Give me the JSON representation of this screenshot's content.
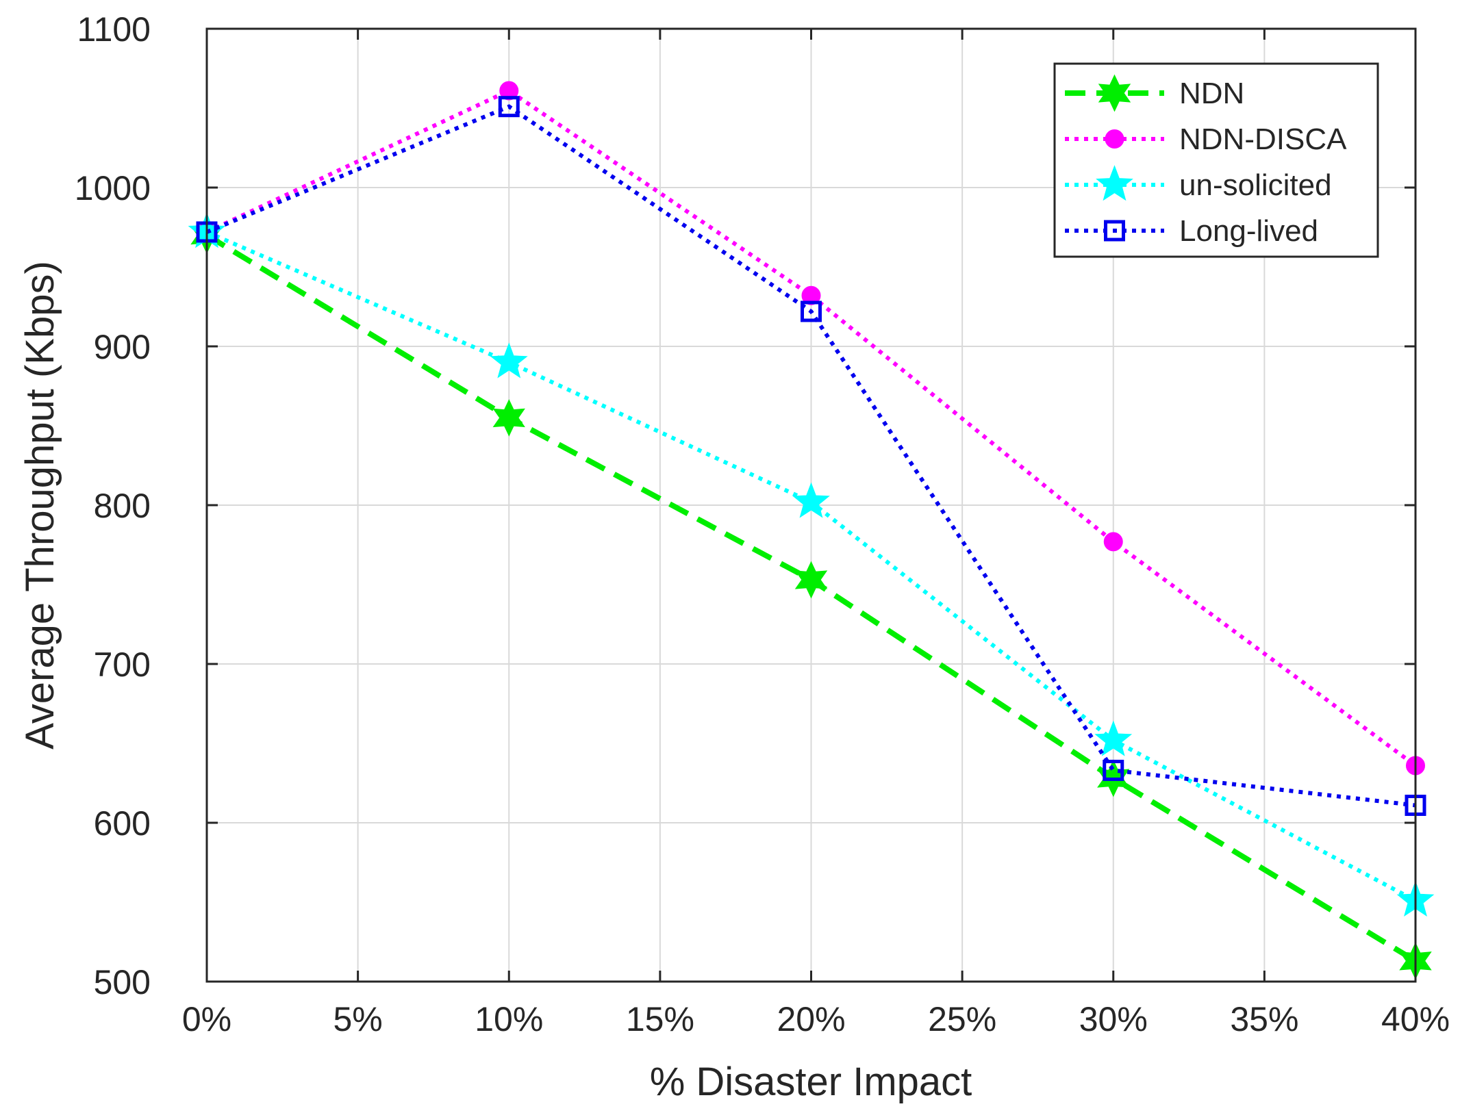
{
  "chart_data": {
    "type": "line",
    "title": "",
    "xlabel": "% Disaster Impact",
    "ylabel": "Average Throughput (Kbps)",
    "xlim": [
      0,
      40
    ],
    "ylim": [
      500,
      1100
    ],
    "grid": true,
    "legend_position": "top-right",
    "x_ticks": [
      {
        "value": 0,
        "label": "0%"
      },
      {
        "value": 5,
        "label": "5%"
      },
      {
        "value": 10,
        "label": "10%"
      },
      {
        "value": 15,
        "label": "15%"
      },
      {
        "value": 20,
        "label": "20%"
      },
      {
        "value": 25,
        "label": "25%"
      },
      {
        "value": 30,
        "label": "30%"
      },
      {
        "value": 35,
        "label": "35%"
      },
      {
        "value": 40,
        "label": "40%"
      }
    ],
    "y_ticks": [
      {
        "value": 500,
        "label": "500"
      },
      {
        "value": 600,
        "label": "600"
      },
      {
        "value": 700,
        "label": "700"
      },
      {
        "value": 800,
        "label": "800"
      },
      {
        "value": 900,
        "label": "900"
      },
      {
        "value": 1000,
        "label": "1000"
      },
      {
        "value": 1100,
        "label": "1100"
      }
    ],
    "x": [
      0,
      10,
      20,
      30,
      40
    ],
    "series": [
      {
        "name": "NDN",
        "values": [
          970,
          855,
          753,
          628,
          513
        ],
        "color": "#00ee00",
        "line_style": "dashed",
        "marker": "hexagram"
      },
      {
        "name": "NDN-DISCA",
        "values": [
          972,
          1061,
          932,
          777,
          636
        ],
        "color": "#ff00ff",
        "line_style": "dotted",
        "marker": "circle"
      },
      {
        "name": "un-solicited",
        "values": [
          972,
          890,
          802,
          652,
          551
        ],
        "color": "#00ffff",
        "line_style": "dotted",
        "marker": "pentagram"
      },
      {
        "name": "Long-lived",
        "values": [
          972,
          1051,
          922,
          633,
          611
        ],
        "color": "#0000ee",
        "line_style": "dotted",
        "marker": "square"
      }
    ]
  }
}
